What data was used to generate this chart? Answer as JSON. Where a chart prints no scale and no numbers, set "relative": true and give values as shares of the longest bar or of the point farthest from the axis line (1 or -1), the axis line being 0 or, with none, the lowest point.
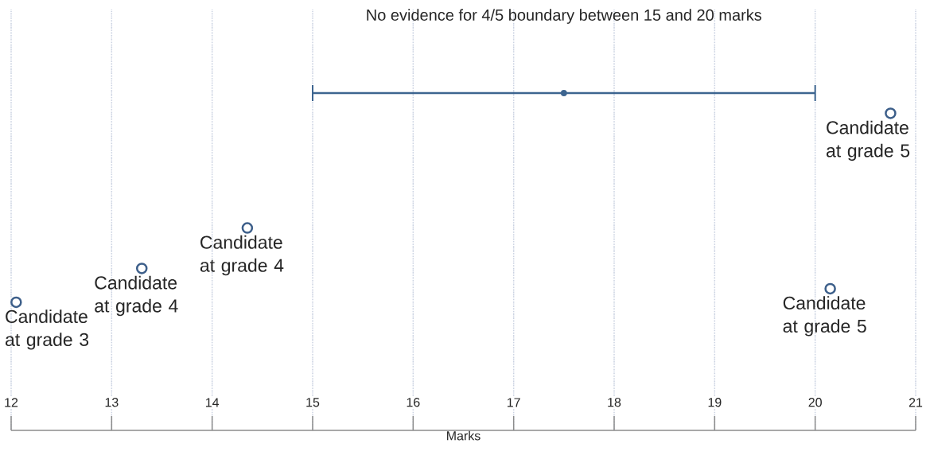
{
  "chart_data": {
    "type": "scatter",
    "xlabel": "Marks",
    "relative": true,
    "xlim": [
      12,
      21
    ],
    "xticks": [
      12,
      13,
      14,
      15,
      16,
      17,
      18,
      19,
      20,
      21
    ],
    "grid": "x",
    "series": [
      {
        "color": "#3d5f8a",
        "marker": "circle",
        "x": [
          12.05,
          13.3,
          14.35,
          20.75,
          20.15
        ],
        "values": [
          0.38,
          0.48,
          0.6,
          0.94,
          0.42
        ]
      },
      {
        "color": "#3d6590",
        "marker": "none",
        "x": [
          17.5
        ],
        "values": [
          1.0
        ],
        "xerrors": [
          2.5
        ]
      }
    ],
    "annotations": [
      "No evidence for 4/5 boundary between 15 and 20 marks",
      {
        "text": "Candidate at grade 3",
        "x": 12.05,
        "y": 0.38
      },
      {
        "text": "Candidate at grade 4",
        "x": 13.3,
        "y": 0.48
      },
      {
        "text": "Candidate at grade 4",
        "x": 14.35,
        "y": 0.6
      },
      {
        "text": "Candidate at grade 5",
        "x": 20.75,
        "y": 0.94
      },
      {
        "text": "Candidate at grade 5",
        "x": 20.15,
        "y": 0.42
      }
    ]
  }
}
